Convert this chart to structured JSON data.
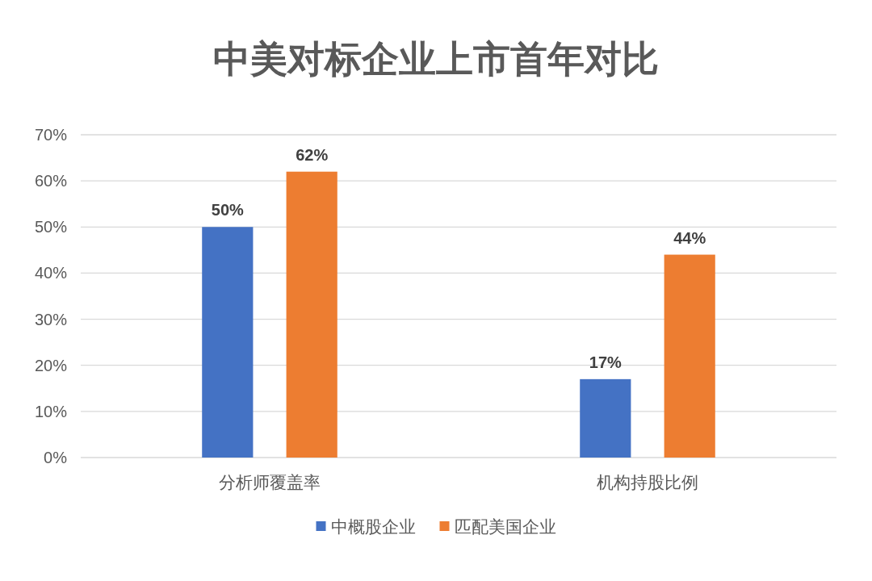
{
  "chart_data": {
    "type": "bar",
    "title": "中美对标企业上市首年对比",
    "categories": [
      "分析师覆盖率",
      "机构持股比例"
    ],
    "series": [
      {
        "name": "中概股企业",
        "color": "#4472c4",
        "values": [
          50,
          17
        ],
        "value_labels": [
          "50%",
          "17%"
        ]
      },
      {
        "name": "匹配美国企业",
        "color": "#ed7d31",
        "values": [
          62,
          44
        ],
        "value_labels": [
          "62%",
          "44%"
        ]
      }
    ],
    "ylim": [
      0,
      70
    ],
    "yticks": [
      {
        "value": 0,
        "label": "0%"
      },
      {
        "value": 10,
        "label": "10%"
      },
      {
        "value": 20,
        "label": "20%"
      },
      {
        "value": 30,
        "label": "30%"
      },
      {
        "value": 40,
        "label": "40%"
      },
      {
        "value": 50,
        "label": "50%"
      },
      {
        "value": 60,
        "label": "60%"
      },
      {
        "value": 70,
        "label": "70%"
      }
    ],
    "grid": "y",
    "legend": "bottom"
  }
}
